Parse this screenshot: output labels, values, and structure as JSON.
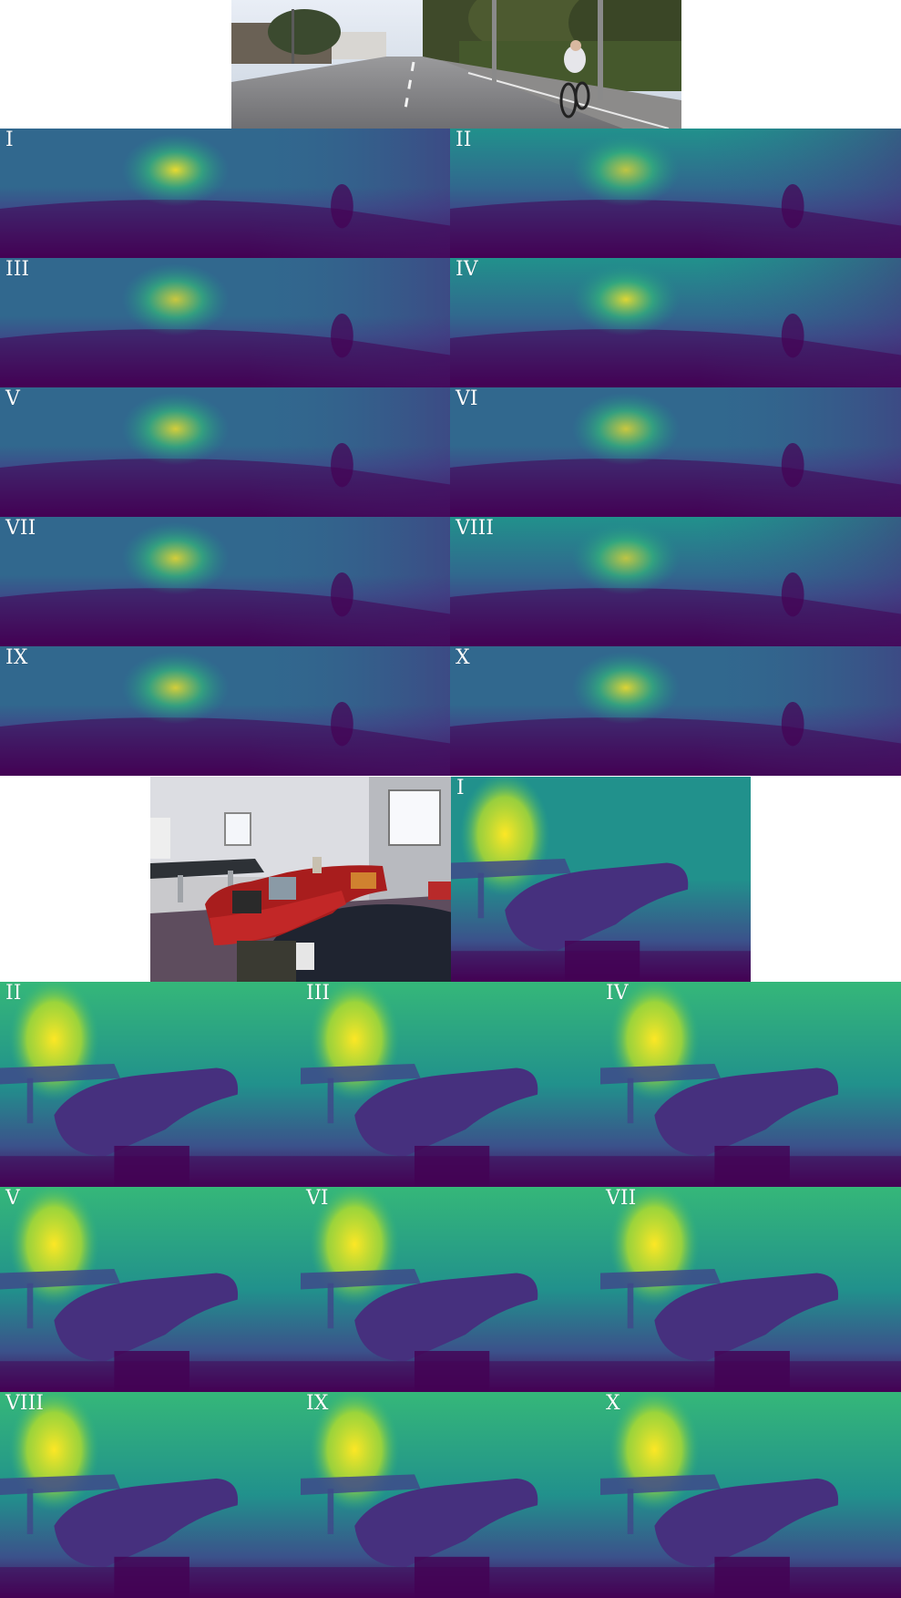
{
  "street_panels": [
    "I",
    "II",
    "III",
    "IV",
    "V",
    "VI",
    "VII",
    "VIII",
    "IX",
    "X"
  ],
  "indoor_first_panel": "I",
  "indoor_panels": [
    "II",
    "III",
    "IV",
    "V",
    "VI",
    "VII",
    "VIII",
    "IX",
    "X"
  ],
  "colormap": {
    "name": "viridis",
    "dark": "#440154",
    "mid": "#31688e",
    "teal": "#21918c",
    "green": "#35b779",
    "bright": "#fde725"
  },
  "photos": {
    "street": "street-scene-with-cyclist",
    "indoor": "living-room-with-red-sofa"
  }
}
